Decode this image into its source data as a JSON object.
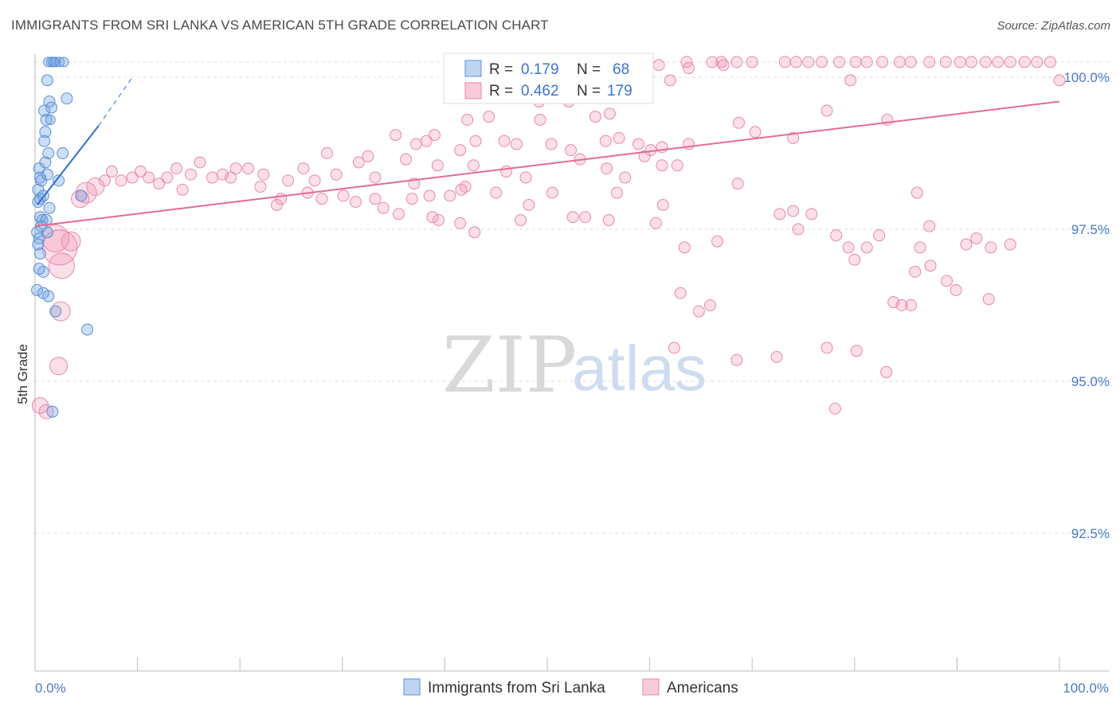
{
  "title": "IMMIGRANTS FROM SRI LANKA VS AMERICAN 5TH GRADE CORRELATION CHART",
  "source": "Source: ZipAtlas.com",
  "watermark": {
    "zip": "ZIP",
    "atlas": "atlas"
  },
  "colors": {
    "blue_fill": "rgba(110,160,225,0.35)",
    "blue_stroke": "#5b8fd6",
    "blue_line": "#2f6fd0",
    "pink_fill": "rgba(240,140,175,0.28)",
    "pink_stroke": "#e88aaa",
    "pink_line": "#e36b98",
    "grid": "#dddddd",
    "tick_label": "#4a79c7"
  },
  "chart_data": {
    "type": "scatter",
    "xlabel": "",
    "ylabel": "5th Grade",
    "xlim": [
      0,
      100
    ],
    "ylim": [
      90.0,
      100.3
    ],
    "x_tick_labels": {
      "left": "0.0%",
      "right": "100.0%"
    },
    "y_ticks": [
      {
        "value": 100.0,
        "label": "100.0%"
      },
      {
        "value": 97.5,
        "label": "97.5%"
      },
      {
        "value": 95.0,
        "label": "95.0%"
      },
      {
        "value": 92.5,
        "label": "92.5%"
      }
    ],
    "legend_stats": [
      {
        "r_label": "R =",
        "r_value": "0.179",
        "n_label": "N =",
        "n_value": "68"
      },
      {
        "r_label": "R =",
        "r_value": "0.462",
        "n_label": "N =",
        "n_value": "179"
      }
    ],
    "series": [
      {
        "name": "Immigrants from Sri Lanka",
        "color": "blue",
        "trend": {
          "x0": 0.2,
          "y0": 97.9,
          "x1": 6.2,
          "y1": 99.2,
          "dash_to_x": 9.5,
          "dash_to_y": 100.0
        },
        "points": [
          [
            1.3,
            100.25,
            6
          ],
          [
            1.6,
            100.25,
            6
          ],
          [
            2.0,
            100.25,
            6
          ],
          [
            2.4,
            100.25,
            6
          ],
          [
            2.8,
            100.25,
            6
          ],
          [
            1.8,
            100.25,
            6
          ],
          [
            1.2,
            99.95,
            7
          ],
          [
            3.1,
            99.65,
            7
          ],
          [
            0.9,
            99.45,
            7
          ],
          [
            1.4,
            99.6,
            7
          ],
          [
            1.6,
            99.5,
            7
          ],
          [
            1.1,
            99.3,
            7
          ],
          [
            1.5,
            99.3,
            6
          ],
          [
            1.0,
            99.1,
            7
          ],
          [
            0.9,
            98.95,
            7
          ],
          [
            2.7,
            98.75,
            7
          ],
          [
            1.3,
            98.75,
            7
          ],
          [
            1.0,
            98.6,
            7
          ],
          [
            0.4,
            98.5,
            7
          ],
          [
            0.5,
            98.35,
            7
          ],
          [
            0.6,
            98.3,
            7
          ],
          [
            1.2,
            98.4,
            7
          ],
          [
            2.3,
            98.3,
            7
          ],
          [
            0.3,
            98.15,
            7
          ],
          [
            0.5,
            98.0,
            7
          ],
          [
            0.8,
            98.05,
            7
          ],
          [
            0.3,
            97.95,
            7
          ],
          [
            1.4,
            97.85,
            7
          ],
          [
            0.5,
            97.7,
            7
          ],
          [
            0.6,
            97.55,
            7
          ],
          [
            0.7,
            97.65,
            7
          ],
          [
            1.1,
            97.65,
            7
          ],
          [
            0.4,
            97.35,
            7
          ],
          [
            1.2,
            97.45,
            7
          ],
          [
            0.3,
            97.25,
            7
          ],
          [
            0.5,
            97.1,
            7
          ],
          [
            0.8,
            96.8,
            7
          ],
          [
            0.4,
            96.85,
            7
          ],
          [
            0.2,
            96.5,
            7
          ],
          [
            0.8,
            96.45,
            7
          ],
          [
            1.3,
            96.4,
            7
          ],
          [
            2.0,
            96.15,
            7
          ],
          [
            5.1,
            95.85,
            7
          ],
          [
            1.7,
            94.5,
            7
          ],
          [
            4.5,
            98.05,
            7
          ],
          [
            0.2,
            97.45,
            7
          ]
        ]
      },
      {
        "name": "Americans",
        "color": "pink",
        "trend": {
          "x0": 0,
          "y0": 97.55,
          "x1": 100,
          "y1": 99.6
        },
        "points": [
          [
            58.7,
            100.25,
            7
          ],
          [
            63.6,
            100.25,
            7
          ],
          [
            66.1,
            100.25,
            7
          ],
          [
            67.0,
            100.25,
            7
          ],
          [
            68.5,
            100.25,
            7
          ],
          [
            70.0,
            100.25,
            7
          ],
          [
            73.2,
            100.25,
            7
          ],
          [
            74.3,
            100.25,
            7
          ],
          [
            75.5,
            100.25,
            7
          ],
          [
            76.8,
            100.25,
            7
          ],
          [
            78.5,
            100.25,
            7
          ],
          [
            80.1,
            100.25,
            7
          ],
          [
            81.2,
            100.25,
            7
          ],
          [
            82.7,
            100.25,
            7
          ],
          [
            84.4,
            100.25,
            7
          ],
          [
            85.5,
            100.25,
            7
          ],
          [
            87.3,
            100.25,
            7
          ],
          [
            88.9,
            100.25,
            7
          ],
          [
            90.3,
            100.25,
            7
          ],
          [
            91.4,
            100.25,
            7
          ],
          [
            92.8,
            100.25,
            7
          ],
          [
            94.0,
            100.25,
            7
          ],
          [
            95.2,
            100.25,
            7
          ],
          [
            96.6,
            100.25,
            7
          ],
          [
            97.8,
            100.25,
            7
          ],
          [
            99.1,
            100.25,
            7
          ],
          [
            42.0,
            100.2,
            7
          ],
          [
            60.9,
            100.2,
            7
          ],
          [
            63.8,
            100.15,
            7
          ],
          [
            67.2,
            100.2,
            7
          ],
          [
            46.9,
            100.15,
            7
          ],
          [
            49.2,
            99.6,
            7
          ],
          [
            79.6,
            99.95,
            7
          ],
          [
            62.0,
            99.95,
            7
          ],
          [
            77.3,
            99.45,
            7
          ],
          [
            100.0,
            99.95,
            7
          ],
          [
            52.1,
            99.6,
            7
          ],
          [
            56.1,
            99.4,
            7
          ],
          [
            54.7,
            99.35,
            7
          ],
          [
            44.3,
            99.35,
            7
          ],
          [
            42.2,
            99.3,
            7
          ],
          [
            49.3,
            99.3,
            7
          ],
          [
            68.7,
            99.25,
            7
          ],
          [
            83.2,
            99.3,
            7
          ],
          [
            70.3,
            99.1,
            7
          ],
          [
            57.0,
            99.0,
            7
          ],
          [
            74.0,
            99.0,
            7
          ],
          [
            39.0,
            99.05,
            7
          ],
          [
            43.0,
            98.95,
            7
          ],
          [
            45.8,
            98.95,
            7
          ],
          [
            50.4,
            98.9,
            7
          ],
          [
            55.7,
            98.95,
            7
          ],
          [
            58.9,
            98.9,
            7
          ],
          [
            60.1,
            98.8,
            7
          ],
          [
            61.2,
            98.85,
            7
          ],
          [
            63.8,
            98.9,
            7
          ],
          [
            35.2,
            99.05,
            7
          ],
          [
            37.2,
            98.9,
            7
          ],
          [
            38.2,
            98.95,
            7
          ],
          [
            41.5,
            98.8,
            7
          ],
          [
            47.0,
            98.9,
            7
          ],
          [
            52.3,
            98.8,
            7
          ],
          [
            53.2,
            98.65,
            7
          ],
          [
            59.5,
            98.7,
            7
          ],
          [
            61.2,
            98.55,
            7
          ],
          [
            62.7,
            98.55,
            7
          ],
          [
            32.5,
            98.7,
            7
          ],
          [
            31.6,
            98.6,
            7
          ],
          [
            33.2,
            98.35,
            7
          ],
          [
            36.2,
            98.65,
            7
          ],
          [
            39.3,
            98.55,
            7
          ],
          [
            42.8,
            98.55,
            7
          ],
          [
            46.0,
            98.45,
            7
          ],
          [
            47.9,
            98.35,
            7
          ],
          [
            55.8,
            98.5,
            7
          ],
          [
            57.6,
            98.35,
            7
          ],
          [
            42.0,
            98.2,
            7
          ],
          [
            37.0,
            98.25,
            7
          ],
          [
            28.5,
            98.75,
            7
          ],
          [
            29.4,
            98.4,
            7
          ],
          [
            27.3,
            98.3,
            7
          ],
          [
            26.2,
            98.5,
            7
          ],
          [
            24.7,
            98.3,
            7
          ],
          [
            22.3,
            98.4,
            7
          ],
          [
            20.8,
            98.5,
            7
          ],
          [
            19.6,
            98.5,
            7
          ],
          [
            18.3,
            98.4,
            7
          ],
          [
            17.3,
            98.35,
            7
          ],
          [
            16.1,
            98.6,
            7
          ],
          [
            15.2,
            98.4,
            7
          ],
          [
            13.8,
            98.5,
            7
          ],
          [
            12.9,
            98.35,
            7
          ],
          [
            12.1,
            98.25,
            7
          ],
          [
            11.1,
            98.35,
            7
          ],
          [
            10.3,
            98.45,
            7
          ],
          [
            9.5,
            98.35,
            7
          ],
          [
            8.4,
            98.3,
            7
          ],
          [
            7.5,
            98.45,
            7
          ],
          [
            6.8,
            98.3,
            7
          ],
          [
            5.9,
            98.2,
            11
          ],
          [
            5.0,
            98.1,
            13
          ],
          [
            4.4,
            98.0,
            11
          ],
          [
            14.4,
            98.15,
            7
          ],
          [
            19.1,
            98.35,
            7
          ],
          [
            22.0,
            98.2,
            7
          ],
          [
            24.0,
            98.0,
            7
          ],
          [
            26.6,
            98.1,
            7
          ],
          [
            28.0,
            98.0,
            7
          ],
          [
            30.1,
            98.05,
            7
          ],
          [
            31.3,
            97.95,
            7
          ],
          [
            33.2,
            98.0,
            7
          ],
          [
            34.0,
            97.85,
            7
          ],
          [
            36.8,
            98.0,
            7
          ],
          [
            38.5,
            98.05,
            7
          ],
          [
            40.5,
            98.05,
            7
          ],
          [
            41.6,
            98.15,
            7
          ],
          [
            45.0,
            98.1,
            7
          ],
          [
            48.2,
            97.9,
            7
          ],
          [
            50.5,
            98.1,
            7
          ],
          [
            56.8,
            98.1,
            7
          ],
          [
            61.3,
            97.9,
            7
          ],
          [
            23.6,
            97.9,
            7
          ],
          [
            35.5,
            97.75,
            7
          ],
          [
            38.8,
            97.7,
            7
          ],
          [
            39.4,
            97.65,
            7
          ],
          [
            41.5,
            97.6,
            7
          ],
          [
            42.9,
            97.45,
            7
          ],
          [
            47.4,
            97.65,
            7
          ],
          [
            52.5,
            97.7,
            7
          ],
          [
            53.7,
            97.7,
            7
          ],
          [
            56.0,
            97.65,
            7
          ],
          [
            60.6,
            97.6,
            7
          ],
          [
            63.4,
            97.2,
            7
          ],
          [
            66.6,
            97.3,
            7
          ],
          [
            68.6,
            98.25,
            7
          ],
          [
            72.7,
            97.75,
            7
          ],
          [
            74.0,
            97.8,
            7
          ],
          [
            75.8,
            97.75,
            7
          ],
          [
            74.5,
            97.5,
            7
          ],
          [
            78.2,
            97.4,
            7
          ],
          [
            79.4,
            97.2,
            7
          ],
          [
            80.0,
            97.0,
            7
          ],
          [
            81.2,
            97.2,
            7
          ],
          [
            82.4,
            97.4,
            7
          ],
          [
            86.1,
            98.1,
            7
          ],
          [
            87.3,
            97.55,
            7
          ],
          [
            90.9,
            97.25,
            7
          ],
          [
            91.9,
            97.35,
            7
          ],
          [
            93.3,
            97.2,
            7
          ],
          [
            95.2,
            97.25,
            7
          ],
          [
            89.0,
            96.65,
            7
          ],
          [
            87.4,
            96.9,
            7
          ],
          [
            93.1,
            96.35,
            7
          ],
          [
            86.4,
            97.2,
            7
          ],
          [
            85.9,
            96.8,
            7
          ],
          [
            89.9,
            96.5,
            7
          ],
          [
            83.8,
            96.3,
            7
          ],
          [
            84.6,
            96.25,
            7
          ],
          [
            85.5,
            96.25,
            7
          ],
          [
            63.0,
            96.45,
            7
          ],
          [
            64.8,
            96.15,
            7
          ],
          [
            65.9,
            96.25,
            7
          ],
          [
            62.4,
            95.55,
            7
          ],
          [
            68.5,
            95.35,
            7
          ],
          [
            72.4,
            95.4,
            7
          ],
          [
            77.3,
            95.55,
            7
          ],
          [
            80.2,
            95.5,
            7
          ],
          [
            83.1,
            95.15,
            7
          ],
          [
            78.1,
            94.55,
            7
          ],
          [
            2.3,
            95.25,
            11
          ],
          [
            2.0,
            97.35,
            17
          ],
          [
            2.4,
            97.2,
            22
          ],
          [
            3.5,
            97.3,
            12
          ],
          [
            2.6,
            96.9,
            16
          ],
          [
            2.5,
            96.15,
            12
          ],
          [
            0.5,
            94.6,
            10
          ],
          [
            1.1,
            94.5,
            9
          ]
        ]
      }
    ]
  },
  "legend": {
    "bottom": [
      {
        "label": "Immigrants from Sri Lanka"
      },
      {
        "label": "Americans"
      }
    ]
  }
}
